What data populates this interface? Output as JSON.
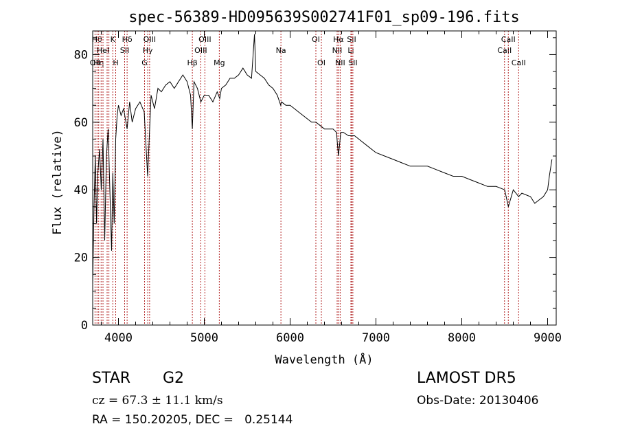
{
  "window": {
    "title": "spec-56389-HD095639S002741F01_sp09-196.fits"
  },
  "info": {
    "object_class": "STAR",
    "subclass": "G2",
    "cz": "cz = 67.3 ± 11.1 km/s",
    "radec": "RA = 150.20205, DEC =   0.25144",
    "survey": "LAMOST DR5",
    "obs_date": "Obs-Date: 20130406"
  },
  "colors": {
    "line_markers": "#b22222",
    "spectrum": "#000000"
  },
  "chart_data": {
    "type": "line",
    "title": "spec-56389-HD095639S002741F01_sp09-196.fits",
    "xlabel": "Wavelength (Å)",
    "ylabel": "Flux (relative)",
    "xlim": [
      3700,
      9100
    ],
    "ylim": [
      0,
      87
    ],
    "xticks": [
      4000,
      5000,
      6000,
      7000,
      8000,
      9000
    ],
    "yticks": [
      0,
      20,
      40,
      60,
      80
    ],
    "grid": false,
    "series": [
      {
        "x": [
          3700,
          3715,
          3730,
          3745,
          3760,
          3780,
          3800,
          3820,
          3840,
          3860,
          3880,
          3900,
          3920,
          3934,
          3950,
          3968,
          3985,
          4000,
          4030,
          4060,
          4101,
          4130,
          4160,
          4200,
          4250,
          4300,
          4340,
          4380,
          4420,
          4460,
          4500,
          4550,
          4600,
          4650,
          4700,
          4750,
          4800,
          4840,
          4861,
          4880,
          4920,
          4960,
          5000,
          5050,
          5100,
          5150,
          5180,
          5200,
          5250,
          5300,
          5350,
          5400,
          5450,
          5500,
          5550,
          5585,
          5600,
          5650,
          5700,
          5750,
          5800,
          5850,
          5890,
          5900,
          5950,
          6000,
          6050,
          6100,
          6150,
          6200,
          6250,
          6300,
          6350,
          6400,
          6450,
          6500,
          6540,
          6563,
          6590,
          6620,
          6680,
          6750,
          6800,
          6900,
          7000,
          7100,
          7200,
          7300,
          7400,
          7500,
          7600,
          7700,
          7800,
          7900,
          8000,
          8100,
          8200,
          8300,
          8400,
          8500,
          8542,
          8600,
          8662,
          8700,
          8800,
          8850,
          8900,
          8950,
          9000,
          9020,
          9050
        ],
        "y": [
          12,
          35,
          50,
          30,
          45,
          52,
          40,
          55,
          25,
          50,
          58,
          40,
          22,
          45,
          30,
          55,
          62,
          65,
          62,
          64,
          58,
          66,
          60,
          64,
          66,
          63,
          44,
          68,
          64,
          70,
          69,
          71,
          72,
          70,
          72,
          74,
          72,
          68,
          58,
          72,
          70,
          66,
          68,
          68,
          66,
          69,
          67,
          70,
          71,
          73,
          73,
          74,
          76,
          74,
          73,
          86,
          75,
          74,
          73,
          71,
          70,
          68,
          65,
          66,
          65,
          65,
          64,
          63,
          62,
          61,
          60,
          60,
          59,
          58,
          58,
          58,
          57,
          50,
          57,
          57,
          56,
          56,
          55,
          53,
          51,
          50,
          49,
          48,
          47,
          47,
          47,
          46,
          45,
          44,
          44,
          43,
          42,
          41,
          41,
          40,
          35,
          40,
          38,
          39,
          38,
          36,
          37,
          38,
          40,
          44,
          49
        ]
      }
    ],
    "lines": [
      {
        "w": 3727,
        "label": "OII",
        "row": 3
      },
      {
        "w": 3750,
        "label": "Hθ",
        "row": 1
      },
      {
        "w": 3770,
        "label": "Hη",
        "row": 3
      },
      {
        "w": 3798,
        "label": "",
        "row": 0
      },
      {
        "w": 3820,
        "label": "HeI",
        "row": 2
      },
      {
        "w": 3868,
        "label": "",
        "row": 0
      },
      {
        "w": 3889,
        "label": "",
        "row": 0
      },
      {
        "w": 3934,
        "label": "K",
        "row": 1
      },
      {
        "w": 3968,
        "label": "H",
        "row": 3
      },
      {
        "w": 4072,
        "label": "SII",
        "row": 2
      },
      {
        "w": 4101,
        "label": "Hδ",
        "row": 1
      },
      {
        "w": 4341,
        "label": "Hγ",
        "row": 2
      },
      {
        "w": 4304,
        "label": "G",
        "row": 3
      },
      {
        "w": 4363,
        "label": "OIII",
        "row": 1
      },
      {
        "w": 4861,
        "label": "Hβ",
        "row": 3
      },
      {
        "w": 4959,
        "label": "OIII",
        "row": 2
      },
      {
        "w": 5007,
        "label": "OIII",
        "row": 1
      },
      {
        "w": 5175,
        "label": "Mg",
        "row": 3
      },
      {
        "w": 5893,
        "label": "Na",
        "row": 2
      },
      {
        "w": 6300,
        "label": "OI",
        "row": 1
      },
      {
        "w": 6364,
        "label": "OI",
        "row": 3
      },
      {
        "w": 6548,
        "label": "NII",
        "row": 2
      },
      {
        "w": 6563,
        "label": "Hα",
        "row": 1
      },
      {
        "w": 6583,
        "label": "NII",
        "row": 3
      },
      {
        "w": 6708,
        "label": "Li",
        "row": 2
      },
      {
        "w": 6716,
        "label": "SII",
        "row": 1
      },
      {
        "w": 6731,
        "label": "SII",
        "row": 3
      },
      {
        "w": 8498,
        "label": "CaII",
        "row": 2
      },
      {
        "w": 8542,
        "label": "CaII",
        "row": 1
      },
      {
        "w": 8662,
        "label": "CaII",
        "row": 3
      }
    ]
  }
}
